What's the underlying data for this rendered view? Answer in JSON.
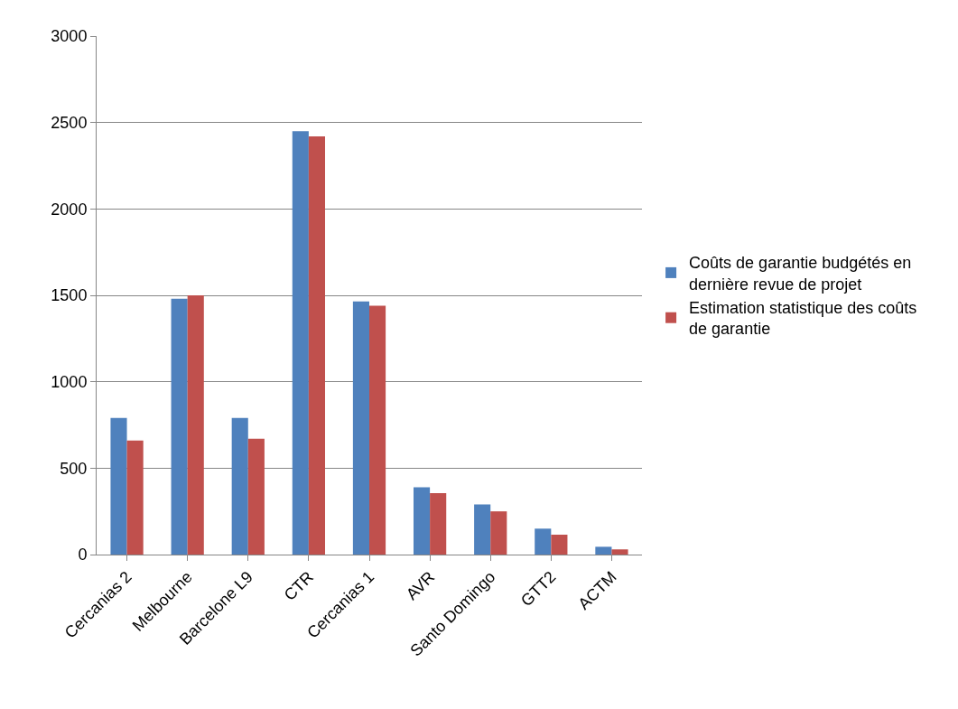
{
  "chart_data": {
    "type": "bar",
    "categories": [
      "Cercanias 2",
      "Melbourne",
      "Barcelone L9",
      "CTR",
      "Cercanias 1",
      "AVR",
      "Santo Domingo",
      "GTT2",
      "ACTM"
    ],
    "series": [
      {
        "name": "Coûts de garantie budgétés en dernière revue de projet",
        "color": "#4f81bd",
        "values": [
          790,
          1480,
          790,
          2450,
          1465,
          390,
          290,
          150,
          45
        ]
      },
      {
        "name": "Estimation statistique des coûts de garantie",
        "color": "#c0504d",
        "values": [
          660,
          1500,
          670,
          2420,
          1440,
          355,
          250,
          115,
          30
        ]
      }
    ],
    "ylim": [
      0,
      3000
    ],
    "yticks": [
      0,
      500,
      1000,
      1500,
      2000,
      2500,
      3000
    ],
    "grid": "y",
    "legend": "right"
  }
}
